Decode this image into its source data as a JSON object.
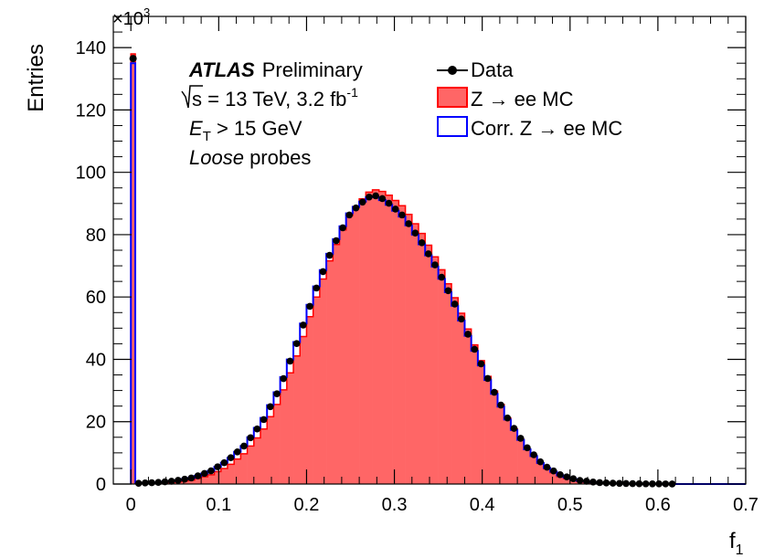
{
  "chart_data": {
    "type": "histogram",
    "xlabel": "f",
    "xlabel_sub": "1",
    "ylabel": "Entries",
    "y_multiplier": "×10",
    "y_multiplier_exp": "3",
    "xlim": [
      -0.02,
      0.7
    ],
    "ylim": [
      0,
      150
    ],
    "x_ticks": [
      0,
      0.1,
      0.2,
      0.3,
      0.4,
      0.5,
      0.6,
      0.7
    ],
    "x_tick_labels": [
      "0",
      "0.1",
      "0.2",
      "0.3",
      "0.4",
      "0.5",
      "0.6",
      "0.7"
    ],
    "y_ticks": [
      0,
      20,
      40,
      60,
      80,
      100,
      120,
      140
    ],
    "y_tick_labels": [
      "0",
      "20",
      "40",
      "60",
      "80",
      "100",
      "120",
      "140"
    ],
    "bin_width": 0.0075,
    "bins_x_start": 0.0,
    "bins_x_end": 0.62,
    "spike": {
      "x": 0.0,
      "width": 0.005,
      "data": 136.5,
      "mc": 138.0,
      "corr_mc": 135.0
    },
    "curve_control_points": {
      "x": [
        0.005,
        0.03,
        0.05,
        0.07,
        0.09,
        0.11,
        0.13,
        0.15,
        0.17,
        0.19,
        0.21,
        0.23,
        0.25,
        0.27,
        0.28,
        0.29,
        0.31,
        0.33,
        0.35,
        0.37,
        0.39,
        0.41,
        0.43,
        0.45,
        0.47,
        0.49,
        0.51,
        0.53,
        0.55,
        0.58,
        0.62
      ],
      "data": [
        0.2,
        0.5,
        1.0,
        2.0,
        4.0,
        7.5,
        12.5,
        20.0,
        31.0,
        46.0,
        62.0,
        76.0,
        87.0,
        92.0,
        92.5,
        91.0,
        86.0,
        78.0,
        68.5,
        57.0,
        44.0,
        31.5,
        20.5,
        12.0,
        6.0,
        2.8,
        1.2,
        0.5,
        0.25,
        0.08,
        0.02
      ],
      "mc": [
        0.1,
        0.3,
        0.6,
        1.3,
        2.8,
        5.5,
        10.0,
        17.0,
        27.5,
        42.0,
        59.0,
        74.5,
        87.0,
        93.5,
        94.5,
        93.5,
        89.0,
        81.0,
        71.0,
        59.0,
        45.5,
        32.0,
        20.5,
        11.5,
        5.5,
        2.2,
        0.8,
        0.3,
        0.1,
        0.03,
        0.01
      ],
      "corr_mc": [
        0.2,
        0.5,
        1.0,
        2.0,
        4.0,
        7.5,
        12.5,
        20.5,
        31.5,
        46.5,
        62.5,
        76.5,
        87.5,
        92.0,
        92.0,
        90.5,
        85.5,
        77.5,
        68.0,
        56.5,
        43.5,
        31.0,
        20.0,
        11.5,
        5.7,
        2.6,
        1.1,
        0.45,
        0.2,
        0.06,
        0.01
      ]
    },
    "series": [
      {
        "name": "Data",
        "style": "points",
        "color": "#000000"
      },
      {
        "name": "Z → ee MC",
        "style": "filled",
        "color": "#ff6666",
        "edge": "#ff0000"
      },
      {
        "name": "Corr. Z → ee MC",
        "style": "line",
        "color": "#0000ff"
      }
    ],
    "annotations": {
      "experiment": "ATLAS",
      "status": "Preliminary",
      "line1": "s = 13 TeV, 3.2 fb",
      "line1_sup": "-1",
      "line2_sym": "E",
      "line2_sub": "T",
      "line2_rest": " > 15 GeV",
      "line3_italic": "Loose",
      "line3_rest": " probes"
    },
    "legend_placement": "top-right",
    "grid": false
  }
}
